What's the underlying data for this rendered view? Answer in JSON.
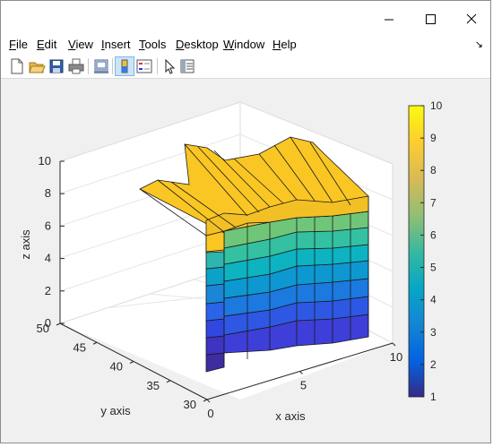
{
  "window": {
    "controls": {
      "minimize": "minimize",
      "maximize": "maximize",
      "close": "close"
    }
  },
  "menu": {
    "items": [
      {
        "pre": "",
        "key": "F",
        "post": "ile"
      },
      {
        "pre": "",
        "key": "E",
        "post": "dit"
      },
      {
        "pre": "",
        "key": "V",
        "post": "iew"
      },
      {
        "pre": "",
        "key": "I",
        "post": "nsert"
      },
      {
        "pre": "",
        "key": "T",
        "post": "ools"
      },
      {
        "pre": "",
        "key": "D",
        "post": "esktop"
      },
      {
        "pre": "",
        "key": "W",
        "post": "indow"
      },
      {
        "pre": "",
        "key": "H",
        "post": "elp"
      }
    ],
    "dock_glyph": "↘"
  },
  "toolbar": {
    "tools": [
      "new-figure-icon",
      "open-file-icon",
      "save-icon",
      "print-icon",
      "link-plot-icon",
      "colorbar-toggle-icon",
      "legend-toggle-icon",
      "edit-plot-icon",
      "property-inspector-icon"
    ],
    "active_tool": "colorbar-toggle-icon"
  },
  "axes": {
    "xlabel": "x axis",
    "ylabel": "y axis",
    "zlabel": "z axis",
    "x_ticks": [
      "0",
      "5",
      "10"
    ],
    "y_ticks": [
      "30",
      "35",
      "40",
      "45",
      "50"
    ],
    "z_ticks": [
      "0",
      "2",
      "4",
      "6",
      "8",
      "10"
    ],
    "xlim": [
      0,
      10
    ],
    "ylim": [
      30,
      50
    ],
    "zlim": [
      0,
      10
    ],
    "grid": true,
    "box": true
  },
  "colorbar": {
    "ticks": [
      "1",
      "2",
      "3",
      "4",
      "5",
      "6",
      "7",
      "8",
      "9",
      "10"
    ],
    "limits": [
      1,
      10
    ],
    "colormap": "parula",
    "colors": [
      "#352a87",
      "#0363e1",
      "#1485d4",
      "#06a7c6",
      "#38b99e",
      "#92bf73",
      "#d9ba56",
      "#fcce2e",
      "#f9fb0e"
    ]
  },
  "chart_data": {
    "type": "surface",
    "surface_color_top": "#f9c623",
    "wall_levels": 9
  }
}
